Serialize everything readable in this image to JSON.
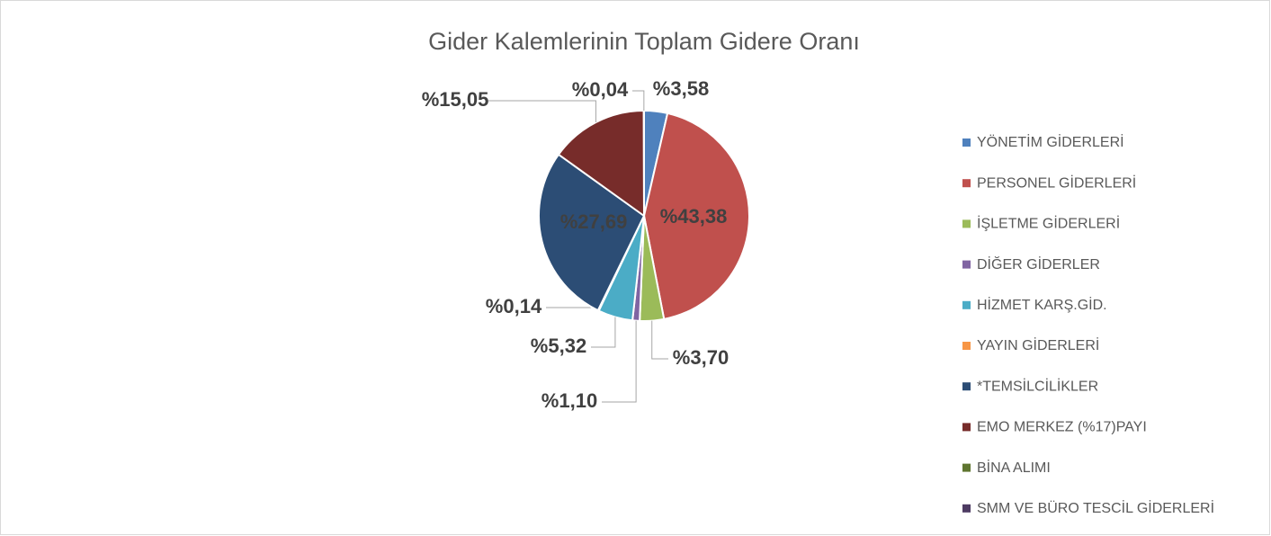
{
  "chart_data": {
    "type": "pie",
    "title": "Gider Kalemlerinin Toplam Gidere Oranı",
    "categories": [
      "YÖNETİM GİDERLERİ",
      "PERSONEL GİDERLERİ",
      "İŞLETME GİDERLERİ",
      "DİĞER GİDERLER",
      "HİZMET KARŞ.GİD.",
      "YAYIN GİDERLERİ",
      "*TEMSİLCİLİKLER",
      "EMO MERKEZ (%17)PAYI",
      "BİNA ALIMI",
      "SMM VE BÜRO TESCİL GİDERLERİ"
    ],
    "values": [
      3.58,
      43.38,
      3.7,
      1.1,
      5.32,
      0.14,
      27.69,
      15.05,
      0.04,
      0
    ],
    "value_labels": [
      "%3,58",
      "%43,38",
      "%3,70",
      "%1,10",
      "%5,32",
      "%0,14",
      "%27,69",
      "%15,05",
      "%0,04",
      null
    ],
    "colors": [
      "#4f81bd",
      "#c0504d",
      "#9bbb59",
      "#8064a2",
      "#4bacc6",
      "#f79646",
      "#2c4d75",
      "#772c2a",
      "#5f7530",
      "#4d3b62"
    ],
    "legend": "right"
  }
}
